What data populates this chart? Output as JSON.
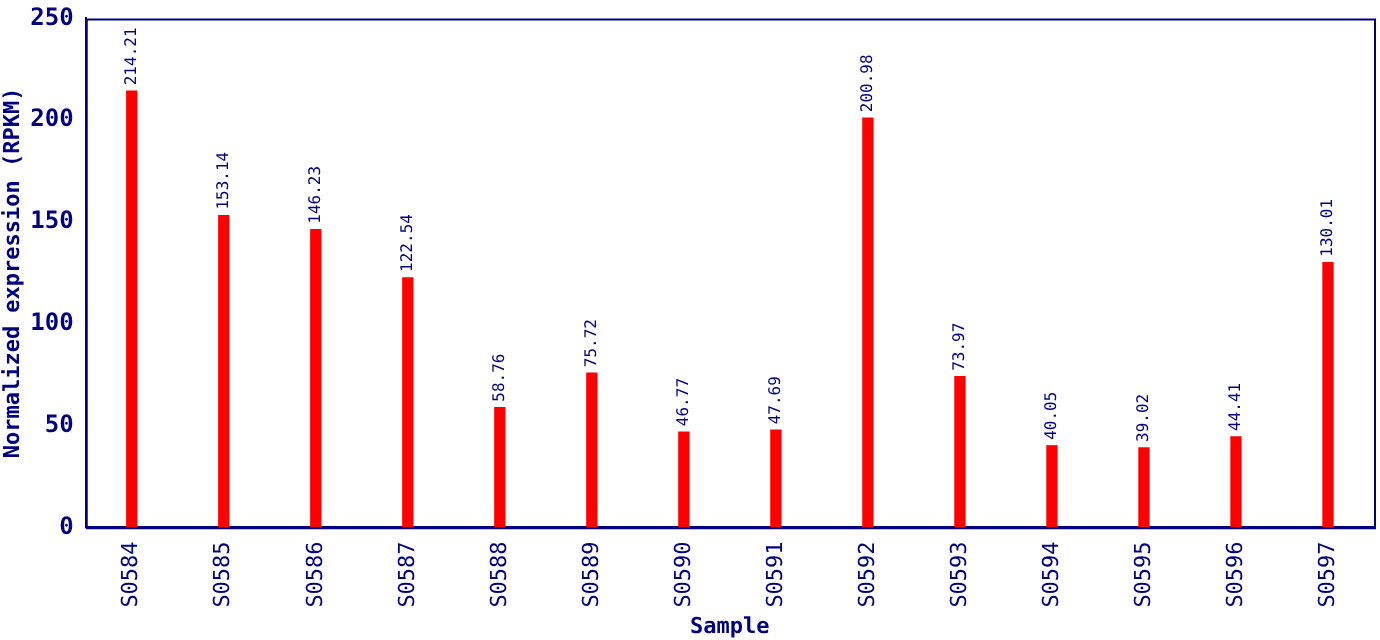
{
  "chart_data": {
    "type": "bar",
    "xlabel": "Sample",
    "ylabel": "Normalized expression (RPKM)",
    "categories": [
      "S0584",
      "S0585",
      "S0586",
      "S0587",
      "S0588",
      "S0589",
      "S0590",
      "S0591",
      "S0592",
      "S0593",
      "S0594",
      "S0595",
      "S0596",
      "S0597"
    ],
    "values": [
      214.21,
      153.14,
      146.23,
      122.54,
      58.76,
      75.72,
      46.77,
      47.69,
      200.98,
      73.97,
      40.05,
      39.02,
      44.41,
      130.01
    ],
    "color": "#ff0000",
    "ylim": [
      0,
      250
    ],
    "yticks": [
      0,
      50,
      100,
      150,
      200,
      250
    ],
    "grid": false,
    "legend": false,
    "data_labels": true
  }
}
